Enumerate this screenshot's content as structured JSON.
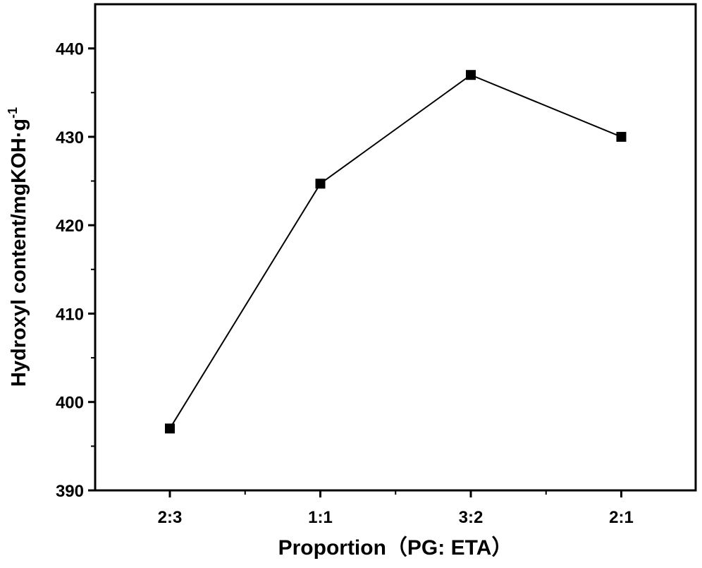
{
  "chart_data": {
    "type": "line",
    "title": "",
    "xlabel": "Proportion（PG: ETA）",
    "ylabel": "Hydroxyl content/mgKOH·g",
    "ylabel_superscript": "-1",
    "categories": [
      "2:3",
      "1:1",
      "3:2",
      "2:1"
    ],
    "values": [
      397.0,
      424.7,
      437.0,
      430.0
    ],
    "ylim": [
      390,
      445
    ],
    "yticks": [
      390,
      400,
      410,
      420,
      430,
      440
    ],
    "grid": false,
    "marker": "square",
    "line_color": "#000000"
  }
}
